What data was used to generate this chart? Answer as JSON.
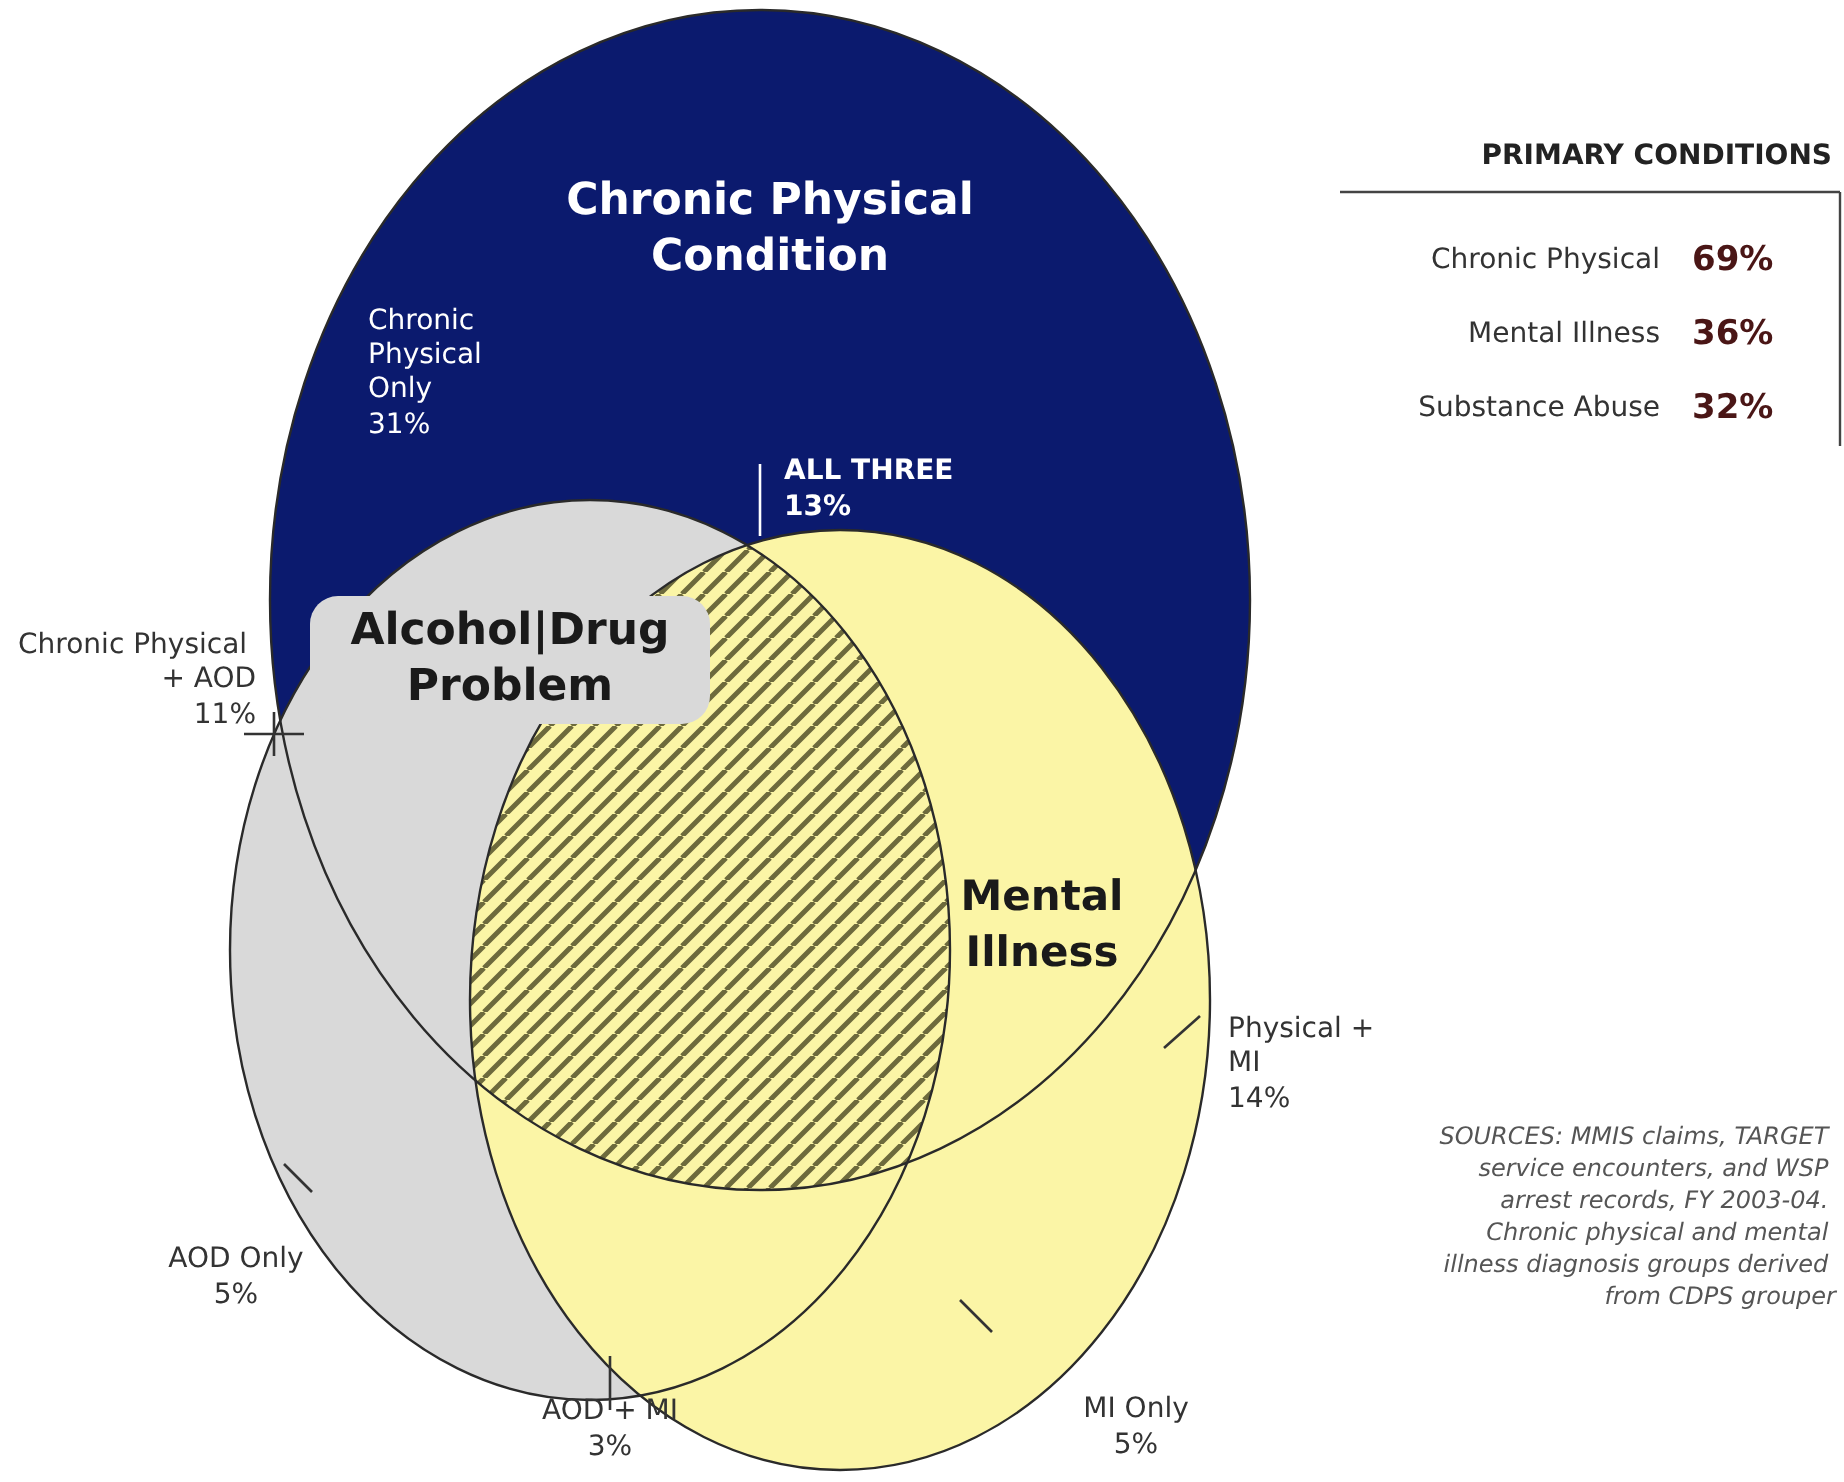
{
  "chart_data": [
    {
      "type": "other",
      "categories": [
        "Chronic Physical Only",
        "ALL THREE",
        "Chronic Physical + AOD",
        "Physical + MI",
        "AOD Only",
        "AOD + MI",
        "MI Only"
      ],
      "values": [
        31,
        13,
        11,
        14,
        5,
        3,
        5
      ],
      "value_labels": [
        "31%",
        "13%",
        "11%",
        "14%",
        "5%",
        "3%",
        "5%"
      ],
      "annotations": [
        "Chronic Physical Condition",
        "Alcohol|Drug Problem",
        "Mental Illness",
        "SOURCES: MMIS claims, TARGET service encounters, and WSP arrest records, FY 2003-04. Chronic physical and mental illness diagnosis groups derived from CDPS grouper"
      ]
    },
    {
      "type": "other",
      "title": "PRIMARY CONDITIONS",
      "categories": [
        "Chronic Physical",
        "Mental Illness",
        "Substance Abuse"
      ],
      "values": [
        69,
        36,
        32
      ],
      "value_labels": [
        "69%",
        "36%",
        "32%"
      ]
    }
  ]
}
